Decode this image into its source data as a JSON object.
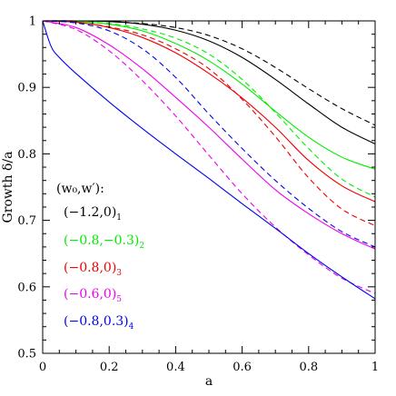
{
  "chart_data": {
    "type": "line",
    "xlabel": "a",
    "ylabel": "Growth δ/a",
    "xlim": [
      0,
      1
    ],
    "ylim": [
      0.5,
      1
    ],
    "x_ticks": [
      "0",
      "0.2",
      "0.4",
      "0.6",
      "0.8",
      "1"
    ],
    "y_ticks": [
      "0.5",
      "0.6",
      "0.7",
      "0.8",
      "0.9",
      "1"
    ],
    "grid": false,
    "legend_title": "(w₀,w′):",
    "legend_position": "left-middle",
    "series": [
      {
        "name": "(−1.2,0)",
        "subscript": "1",
        "color": "#000000",
        "style": "solid",
        "x": [
          0,
          0.1,
          0.2,
          0.3,
          0.4,
          0.5,
          0.6,
          0.7,
          0.8,
          0.9,
          1.0
        ],
        "y": [
          1.0,
          1.0,
          0.999,
          0.995,
          0.986,
          0.97,
          0.945,
          0.912,
          0.875,
          0.84,
          0.815
        ]
      },
      {
        "name": "(−1.2,0)",
        "subscript": "1",
        "color": "#000000",
        "style": "dashed",
        "x": [
          0,
          0.1,
          0.2,
          0.3,
          0.4,
          0.5,
          0.6,
          0.7,
          0.8,
          0.9,
          1.0
        ],
        "y": [
          1.0,
          1.0,
          0.999,
          0.996,
          0.99,
          0.978,
          0.958,
          0.93,
          0.898,
          0.868,
          0.843
        ]
      },
      {
        "name": "(−0.8,−0.3)",
        "subscript": "2",
        "color": "#00ee00",
        "style": "solid",
        "x": [
          0,
          0.1,
          0.2,
          0.3,
          0.4,
          0.5,
          0.6,
          0.7,
          0.8,
          0.9,
          1.0
        ],
        "y": [
          1.0,
          0.999,
          0.995,
          0.985,
          0.966,
          0.94,
          0.905,
          0.864,
          0.825,
          0.795,
          0.777
        ]
      },
      {
        "name": "(−0.8,−0.3)",
        "subscript": "2",
        "color": "#00ee00",
        "style": "dashed",
        "x": [
          0,
          0.1,
          0.2,
          0.3,
          0.4,
          0.5,
          0.6,
          0.7,
          0.8,
          0.9,
          1.0
        ],
        "y": [
          1.0,
          0.999,
          0.996,
          0.988,
          0.974,
          0.95,
          0.912,
          0.862,
          0.808,
          0.762,
          0.735
        ]
      },
      {
        "name": "(−0.8,0)",
        "subscript": "3",
        "color": "#ee0000",
        "style": "solid",
        "x": [
          0,
          0.1,
          0.2,
          0.3,
          0.4,
          0.5,
          0.6,
          0.7,
          0.8,
          0.9,
          1.0
        ],
        "y": [
          1.0,
          0.998,
          0.99,
          0.975,
          0.952,
          0.921,
          0.884,
          0.84,
          0.79,
          0.752,
          0.728
        ]
      },
      {
        "name": "(−0.8,0)",
        "subscript": "3",
        "color": "#ee0000",
        "style": "dashed",
        "x": [
          0,
          0.1,
          0.2,
          0.3,
          0.4,
          0.5,
          0.6,
          0.7,
          0.8,
          0.9,
          1.0
        ],
        "y": [
          1.0,
          0.998,
          0.991,
          0.979,
          0.958,
          0.928,
          0.882,
          0.826,
          0.764,
          0.717,
          0.692
        ]
      },
      {
        "name": "(−0.6,0)",
        "subscript": "5",
        "color": "#ee00ee",
        "style": "solid",
        "x": [
          0,
          0.1,
          0.2,
          0.3,
          0.4,
          0.5,
          0.6,
          0.7,
          0.8,
          0.9,
          1.0
        ],
        "y": [
          1.0,
          0.99,
          0.964,
          0.928,
          0.885,
          0.84,
          0.792,
          0.746,
          0.71,
          0.68,
          0.657
        ]
      },
      {
        "name": "(−0.6,0)",
        "subscript": "5",
        "color": "#ee00ee",
        "style": "dashed",
        "x": [
          0,
          0.1,
          0.2,
          0.3,
          0.4,
          0.5,
          0.6,
          0.7,
          0.8,
          0.9,
          1.0
        ],
        "y": [
          1.0,
          0.987,
          0.955,
          0.91,
          0.857,
          0.798,
          0.74,
          0.69,
          0.648,
          0.613,
          0.59
        ]
      },
      {
        "name": "(−0.8,0.3)",
        "subscript": "4",
        "color": "#0000ee",
        "style": "solid",
        "x": [
          0,
          0.025,
          0.05,
          0.1,
          0.2,
          0.3,
          0.4,
          0.5,
          0.6,
          0.7,
          0.8,
          0.9,
          1.0
        ],
        "y": [
          1.0,
          0.962,
          0.945,
          0.921,
          0.878,
          0.838,
          0.8,
          0.763,
          0.725,
          0.688,
          0.65,
          0.615,
          0.582
        ]
      },
      {
        "name": "(−0.8,0.3)",
        "subscript": "4",
        "color": "#0000ee",
        "style": "dashed",
        "x": [
          0,
          0.1,
          0.2,
          0.3,
          0.4,
          0.5,
          0.6,
          0.7,
          0.8,
          0.9,
          1.0
        ],
        "y": [
          1.0,
          0.997,
          0.985,
          0.958,
          0.915,
          0.86,
          0.808,
          0.76,
          0.718,
          0.683,
          0.66
        ]
      }
    ],
    "legend": [
      {
        "label": "(−1.2,0)",
        "subscript": "1",
        "color": "#000000"
      },
      {
        "label": "(−0.8,−0.3)",
        "subscript": "2",
        "color": "#00ee00"
      },
      {
        "label": "(−0.8,0)",
        "subscript": "3",
        "color": "#ee0000"
      },
      {
        "label": "(−0.6,0)",
        "subscript": "5",
        "color": "#ee00ee"
      },
      {
        "label": "(−0.8,0.3)",
        "subscript": "4",
        "color": "#0000ee"
      }
    ]
  }
}
